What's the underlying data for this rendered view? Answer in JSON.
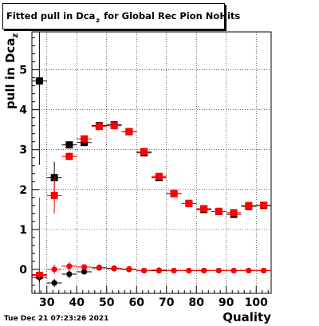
{
  "timestamp": "Tue Dec 21 07:23:26 2021",
  "chart_data": {
    "type": "scatter",
    "title_main": "Fitted pull in Dca",
    "title_sub": "z",
    "title_rest": "for Global Rec Pion NoHits",
    "xlabel": "Quality",
    "ylabel": "pull in Dca",
    "ylabel_sub": "z",
    "xlim": [
      25,
      105
    ],
    "ylim": [
      -0.6,
      5.95
    ],
    "x_ticks": [
      30,
      40,
      50,
      60,
      70,
      80,
      90,
      100
    ],
    "x_tick_labels": [
      "30",
      "40",
      "50",
      "60",
      "70",
      "80",
      "90",
      "100"
    ],
    "y_ticks": [
      0,
      1,
      2,
      3,
      4,
      5
    ],
    "y_tick_labels": [
      "0",
      "1",
      "2",
      "3",
      "4",
      "5"
    ],
    "grid": true,
    "bin_half_width": 2.5,
    "series": [
      {
        "color": "#000000",
        "marker": "square",
        "x": [
          27.5,
          32.5,
          37.5,
          42.5,
          47.5,
          52.5,
          57.5,
          62.5,
          67.5,
          72.5,
          77.5,
          82.5,
          87.5,
          92.5,
          97.5,
          102.5
        ],
        "y": [
          4.72,
          2.3,
          3.12,
          3.18,
          3.6,
          3.62,
          3.45,
          2.92,
          2.3,
          1.9,
          1.65,
          1.5,
          1.45,
          1.38,
          1.58,
          1.6
        ],
        "yerr": [
          2.1,
          0.4,
          0.07,
          0.05,
          0.04,
          0.04,
          0.04,
          0.04,
          0.05,
          0.05,
          0.05,
          0.05,
          0.05,
          0.05,
          0.05,
          0.05
        ]
      },
      {
        "color": "#ff0000",
        "marker": "square",
        "x": [
          27.5,
          32.5,
          37.5,
          42.5,
          47.5,
          52.5,
          57.5,
          62.5,
          67.5,
          72.5,
          77.5,
          82.5,
          87.5,
          92.5,
          97.5,
          102.5
        ],
        "y": [
          -0.15,
          1.85,
          2.83,
          3.27,
          3.58,
          3.6,
          3.45,
          2.95,
          2.33,
          1.9,
          1.65,
          1.52,
          1.45,
          1.42,
          1.6,
          1.61
        ],
        "yerr": [
          1.95,
          0.45,
          0.1,
          0.06,
          0.04,
          0.04,
          0.04,
          0.04,
          0.05,
          0.05,
          0.05,
          0.05,
          0.05,
          0.05,
          0.05,
          0.05
        ]
      },
      {
        "color": "#000000",
        "marker": "circle",
        "x": [
          27.5,
          32.5,
          37.5,
          42.5,
          47.5,
          52.5,
          57.5,
          62.5,
          67.5,
          72.5,
          77.5,
          82.5,
          87.5,
          92.5,
          97.5,
          102.5
        ],
        "y": [
          -0.2,
          -0.34,
          -0.12,
          -0.06,
          0.04,
          0.02,
          0.0,
          -0.03,
          -0.03,
          -0.03,
          -0.03,
          -0.03,
          -0.03,
          -0.03,
          -0.03,
          -0.03
        ],
        "yerr": [
          0.12,
          0.1,
          0.1,
          0.05,
          0.04,
          0.03,
          0.03,
          0.02,
          0.02,
          0.02,
          0.02,
          0.02,
          0.02,
          0.02,
          0.02,
          0.02
        ]
      },
      {
        "color": "#ff0000",
        "marker": "circle",
        "x": [
          27.5,
          32.5,
          37.5,
          42.5,
          47.5,
          52.5,
          57.5,
          62.5,
          67.5,
          72.5,
          77.5,
          82.5,
          87.5,
          92.5,
          97.5,
          102.5
        ],
        "y": [
          -0.13,
          0.0,
          0.08,
          0.06,
          0.05,
          0.03,
          0.01,
          -0.03,
          -0.02,
          -0.03,
          -0.03,
          -0.03,
          -0.03,
          -0.03,
          -0.03,
          -0.03
        ],
        "yerr": [
          0.12,
          0.12,
          0.1,
          0.05,
          0.04,
          0.03,
          0.03,
          0.02,
          0.02,
          0.02,
          0.02,
          0.02,
          0.02,
          0.02,
          0.02,
          0.02
        ]
      }
    ]
  }
}
